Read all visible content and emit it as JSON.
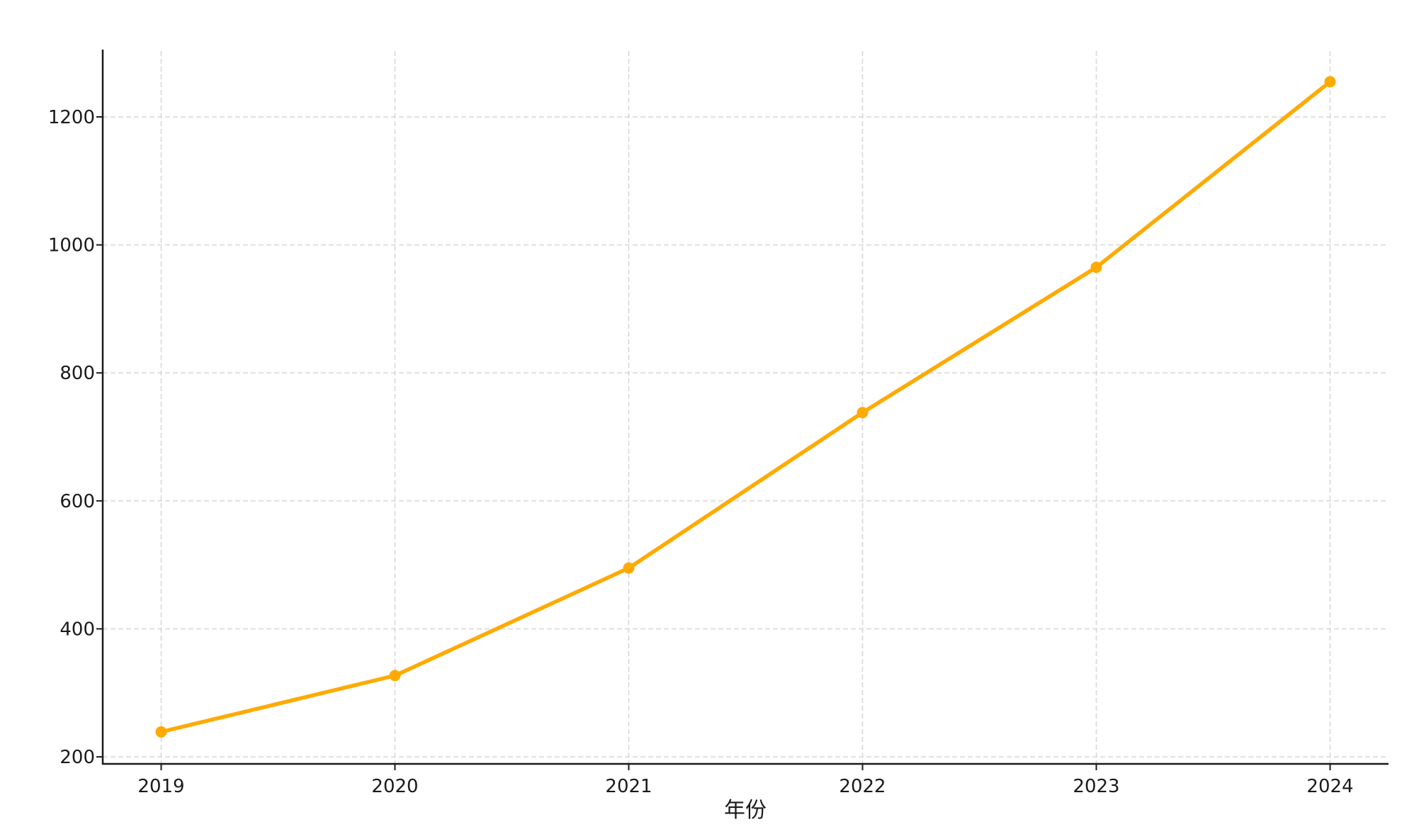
{
  "chart_data": {
    "type": "line",
    "title": "",
    "xlabel": "年份",
    "ylabel": "",
    "x": [
      2019,
      2020,
      2021,
      2022,
      2023,
      2024
    ],
    "series": [
      {
        "values": [
          239,
          327,
          495,
          738,
          965,
          1255
        ],
        "color": "#ffaa00",
        "marker": "circle"
      }
    ],
    "xlim": [
      2018.75,
      2024.25
    ],
    "ylim": [
      189,
      1303
    ],
    "xticks": [
      "2019",
      "2020",
      "2021",
      "2022",
      "2023",
      "2024"
    ],
    "yticks": [
      "200",
      "400",
      "600",
      "800",
      "1000",
      "1200"
    ],
    "grid": true,
    "grid_style": "dashed",
    "legend": "none"
  }
}
